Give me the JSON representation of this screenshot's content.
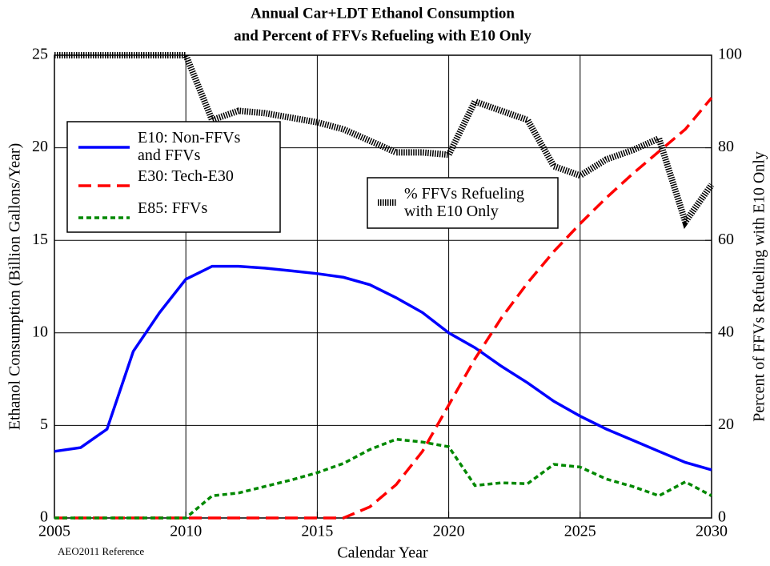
{
  "chart_data": {
    "type": "line",
    "title": [
      "Annual Car+LDT Ethanol Consumption",
      "and Percent of FFVs Refueling with E10 Only"
    ],
    "x_label": "Calendar Year",
    "y_label": "Ethanol Consumption (Billion Gallons/Year)",
    "y2_label": "Percent of FFVs Refueling with E10 Only",
    "note": "AEO2011 Reference",
    "x": [
      2005,
      2006,
      2007,
      2008,
      2009,
      2010,
      2011,
      2012,
      2013,
      2014,
      2015,
      2016,
      2017,
      2018,
      2019,
      2020,
      2021,
      2022,
      2023,
      2024,
      2025,
      2026,
      2027,
      2028,
      2029,
      2030
    ],
    "xlim": [
      2005,
      2030
    ],
    "xticks": [
      2005,
      2010,
      2015,
      2020,
      2025,
      2030
    ],
    "ylim": [
      0,
      25
    ],
    "yticks": [
      0,
      5,
      10,
      15,
      20,
      25
    ],
    "y2lim": [
      0,
      100
    ],
    "y2ticks": [
      0,
      20,
      40,
      60,
      80,
      100
    ],
    "grid": true,
    "series": [
      {
        "name": "E10: Non-FFVs and FFVs",
        "color": "#0000ff",
        "style": "solid",
        "values": [
          3.6,
          3.8,
          4.8,
          9.0,
          11.1,
          12.9,
          13.6,
          13.6,
          13.5,
          13.35,
          13.2,
          13.0,
          12.6,
          11.9,
          11.1,
          10.0,
          9.2,
          8.2,
          7.3,
          6.3,
          5.5,
          4.8,
          4.2,
          3.6,
          3.0,
          2.6
        ]
      },
      {
        "name": "E30: Tech-E30",
        "color": "#ff0000",
        "style": "dashed",
        "values": [
          0,
          0,
          0,
          0,
          0,
          0,
          0,
          0,
          0,
          0,
          0,
          0,
          0.6,
          1.8,
          3.6,
          6.1,
          8.6,
          10.8,
          12.7,
          14.4,
          15.9,
          17.3,
          18.6,
          19.8,
          21.0,
          22.7
        ]
      },
      {
        "name": "E85: FFVs",
        "color": "#008800",
        "style": "dotted",
        "values": [
          0,
          0,
          0,
          0,
          0,
          0,
          1.2,
          1.35,
          1.7,
          2.05,
          2.45,
          2.95,
          3.7,
          4.25,
          4.1,
          3.85,
          1.75,
          1.9,
          1.85,
          2.9,
          2.75,
          2.1,
          1.7,
          1.2,
          1.95,
          1.2
        ]
      },
      {
        "name": "% FFVs Refueling with E10 Only",
        "color": "#000000",
        "style": "hatched",
        "axis": "y2",
        "values": [
          100,
          100,
          100,
          100,
          100,
          100,
          86,
          88,
          87.5,
          86.5,
          85.5,
          84,
          81.5,
          79,
          79,
          78.5,
          90,
          88,
          86,
          76,
          74,
          77.5,
          79.5,
          82,
          64,
          72
        ]
      }
    ]
  }
}
